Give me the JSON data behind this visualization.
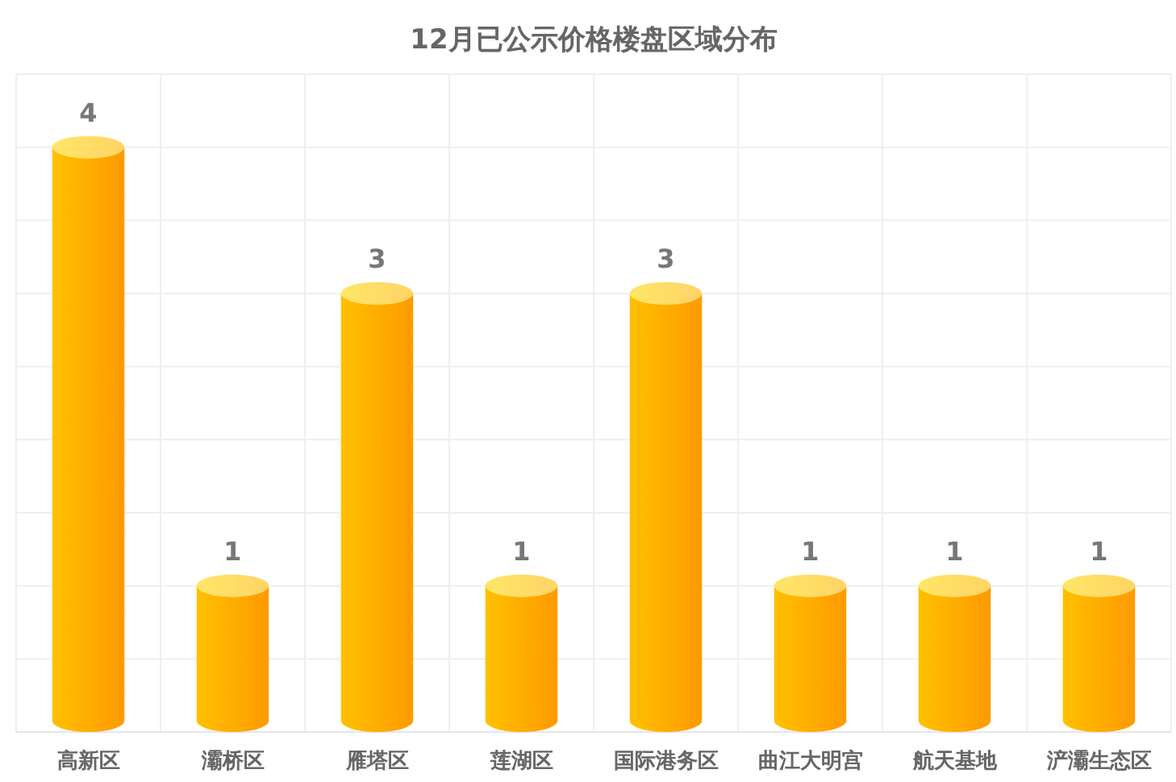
{
  "chart_data": {
    "type": "bar",
    "title": "12月已公示价格楼盘区域分布",
    "categories": [
      "高新区",
      "灞桥区",
      "雁塔区",
      "莲湖区",
      "国际港务区",
      "曲江大明宫",
      "航天基地",
      "浐灞生态区"
    ],
    "values": [
      4,
      1,
      3,
      1,
      3,
      1,
      1,
      1
    ],
    "color": "#ffad00",
    "ylim": [
      0,
      4.5
    ],
    "yticks": [
      {
        "value": 0,
        "label": null
      },
      {
        "value": 0.5,
        "label": null
      },
      {
        "value": 1,
        "label": null
      },
      {
        "value": 1.5,
        "label": null
      },
      {
        "value": 2,
        "label": null
      },
      {
        "value": 2.5,
        "label": null
      },
      {
        "value": 3,
        "label": null
      },
      {
        "value": 3.5,
        "label": null
      },
      {
        "value": 4,
        "label": null
      },
      {
        "value": 4.5,
        "label": null
      }
    ],
    "tick_labels": "x",
    "grid": true,
    "data_labels": true
  }
}
